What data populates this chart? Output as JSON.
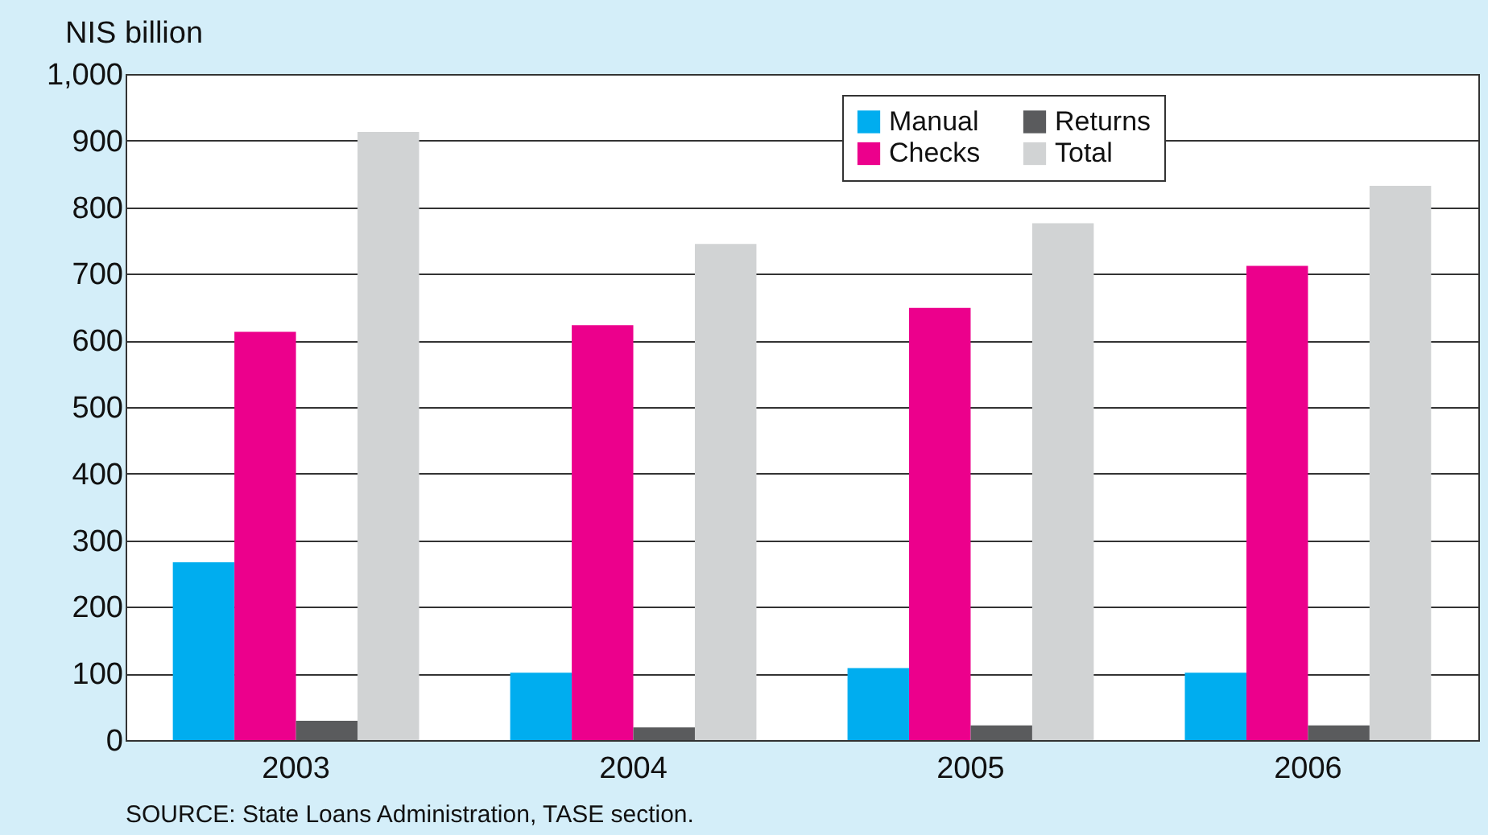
{
  "chart_data": {
    "type": "bar",
    "ylabel": "NIS billion",
    "categories": [
      "2003",
      "2004",
      "2005",
      "2006"
    ],
    "series": [
      {
        "name": "Manual",
        "color": "#00adef",
        "values": [
          267,
          101,
          108,
          101
        ]
      },
      {
        "name": "Checks",
        "color": "#ec008c",
        "values": [
          613,
          623,
          649,
          712
        ]
      },
      {
        "name": "Returns",
        "color": "#5a5b5d",
        "values": [
          29,
          19,
          22,
          22
        ]
      },
      {
        "name": "Total",
        "color": "#d1d3d4",
        "values": [
          913,
          745,
          776,
          832
        ]
      }
    ],
    "ylim": [
      0,
      1000
    ],
    "yticks": [
      0,
      100,
      200,
      300,
      400,
      500,
      600,
      700,
      800,
      900,
      {
        "value": 1000,
        "label": "1,000"
      }
    ],
    "grid": "y",
    "legend": "top right",
    "annotations": [
      "SOURCE: State Loans Administration, TASE section."
    ]
  }
}
